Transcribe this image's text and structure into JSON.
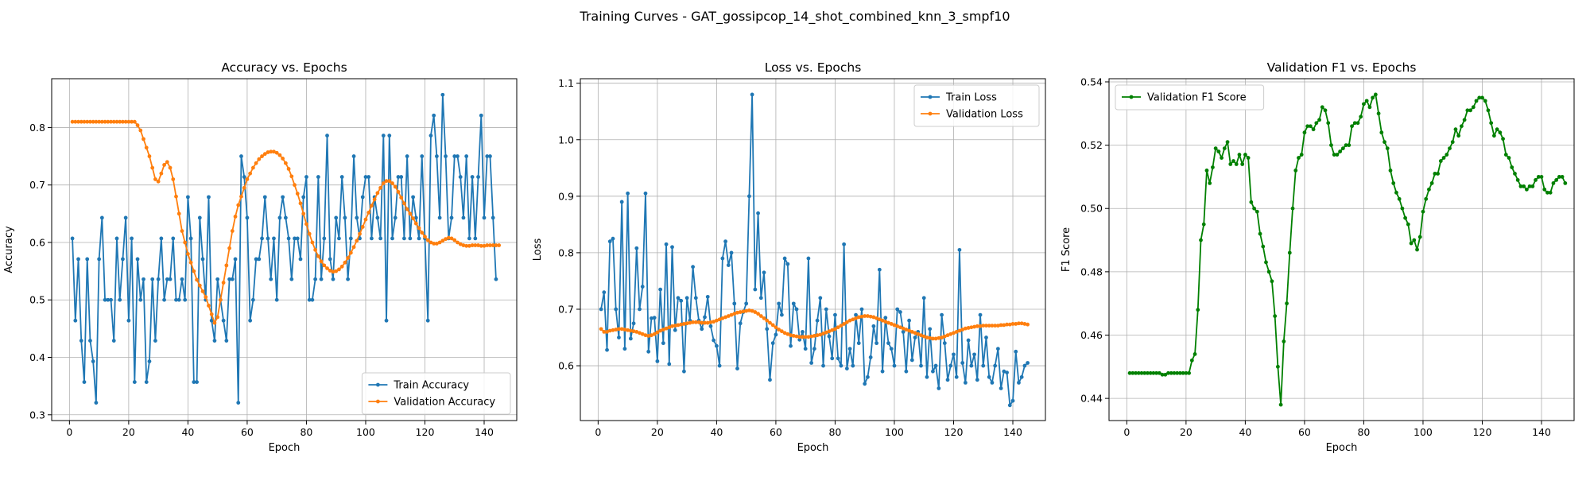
{
  "figure_title": "Training Curves - GAT_gossipcop_14_shot_combined_knn_3_smpf10",
  "chart_data": [
    {
      "type": "line",
      "title": "Accuracy vs. Epochs",
      "xlabel": "Epoch",
      "ylabel": "Accuracy",
      "xlim": [
        -6,
        151
      ],
      "ylim": [
        0.29,
        0.885
      ],
      "xticks": [
        0,
        20,
        40,
        60,
        80,
        100,
        120,
        140
      ],
      "yticks": [
        0.3,
        0.4,
        0.5,
        0.6,
        0.7,
        0.8
      ],
      "tick_format": 1,
      "grid": true,
      "legend_position": "lower right",
      "series": [
        {
          "name": "Train Accuracy",
          "color": "#1f77b4",
          "values": [
            0.607,
            0.464,
            0.571,
            0.429,
            0.357,
            0.571,
            0.429,
            0.393,
            0.321,
            0.571,
            0.643,
            0.5,
            0.5,
            0.5,
            0.429,
            0.607,
            0.5,
            0.571,
            0.643,
            0.464,
            0.607,
            0.357,
            0.571,
            0.5,
            0.536,
            0.357,
            0.393,
            0.536,
            0.429,
            0.536,
            0.607,
            0.5,
            0.536,
            0.536,
            0.607,
            0.5,
            0.5,
            0.536,
            0.5,
            0.679,
            0.607,
            0.357,
            0.357,
            0.643,
            0.571,
            0.5,
            0.679,
            0.464,
            0.429,
            0.536,
            0.5,
            0.464,
            0.429,
            0.536,
            0.536,
            0.571,
            0.321,
            0.75,
            0.714,
            0.643,
            0.464,
            0.5,
            0.571,
            0.571,
            0.607,
            0.679,
            0.607,
            0.536,
            0.607,
            0.5,
            0.643,
            0.679,
            0.643,
            0.607,
            0.536,
            0.607,
            0.607,
            0.571,
            0.679,
            0.714,
            0.5,
            0.5,
            0.536,
            0.714,
            0.536,
            0.607,
            0.786,
            0.571,
            0.536,
            0.643,
            0.607,
            0.714,
            0.643,
            0.536,
            0.607,
            0.75,
            0.643,
            0.607,
            0.679,
            0.714,
            0.714,
            0.607,
            0.679,
            0.643,
            0.607,
            0.786,
            0.464,
            0.786,
            0.607,
            0.643,
            0.714,
            0.714,
            0.607,
            0.75,
            0.607,
            0.679,
            0.643,
            0.607,
            0.75,
            0.607,
            0.464,
            0.786,
            0.821,
            0.75,
            0.643,
            0.857,
            0.75,
            0.607,
            0.643,
            0.75,
            0.75,
            0.714,
            0.643,
            0.75,
            0.607,
            0.714,
            0.607,
            0.714,
            0.821,
            0.643,
            0.75,
            0.75,
            0.643,
            0.536
          ]
        },
        {
          "name": "Validation Accuracy",
          "color": "#ff7f0e",
          "values": [
            0.81,
            0.81,
            0.81,
            0.81,
            0.81,
            0.81,
            0.81,
            0.81,
            0.81,
            0.81,
            0.81,
            0.81,
            0.81,
            0.81,
            0.81,
            0.81,
            0.81,
            0.81,
            0.81,
            0.81,
            0.81,
            0.81,
            0.804,
            0.795,
            0.78,
            0.765,
            0.75,
            0.73,
            0.71,
            0.706,
            0.72,
            0.735,
            0.74,
            0.73,
            0.71,
            0.68,
            0.65,
            0.62,
            0.6,
            0.58,
            0.565,
            0.55,
            0.535,
            0.525,
            0.515,
            0.505,
            0.49,
            0.475,
            0.46,
            0.47,
            0.5,
            0.53,
            0.56,
            0.59,
            0.62,
            0.645,
            0.665,
            0.68,
            0.695,
            0.71,
            0.72,
            0.73,
            0.738,
            0.745,
            0.75,
            0.754,
            0.757,
            0.758,
            0.758,
            0.756,
            0.752,
            0.746,
            0.738,
            0.728,
            0.715,
            0.7,
            0.685,
            0.668,
            0.65,
            0.632,
            0.615,
            0.6,
            0.587,
            0.576,
            0.567,
            0.56,
            0.555,
            0.551,
            0.549,
            0.55,
            0.553,
            0.558,
            0.565,
            0.573,
            0.582,
            0.592,
            0.603,
            0.615,
            0.627,
            0.64,
            0.652,
            0.664,
            0.675,
            0.686,
            0.695,
            0.703,
            0.707,
            0.707,
            0.703,
            0.697,
            0.688,
            0.678,
            0.668,
            0.658,
            0.65,
            0.642,
            0.633,
            0.625,
            0.617,
            0.61,
            0.604,
            0.6,
            0.598,
            0.598,
            0.6,
            0.603,
            0.606,
            0.608,
            0.607,
            0.604,
            0.6,
            0.597,
            0.595,
            0.594,
            0.594,
            0.595,
            0.595,
            0.595,
            0.594,
            0.594,
            0.595,
            0.595,
            0.595,
            0.595,
            0.595
          ]
        }
      ]
    },
    {
      "type": "line",
      "title": "Loss vs. Epochs",
      "xlabel": "Epoch",
      "ylabel": "Loss",
      "xlim": [
        -6,
        151
      ],
      "ylim": [
        0.503,
        1.108
      ],
      "xticks": [
        0,
        20,
        40,
        60,
        80,
        100,
        120,
        140
      ],
      "yticks": [
        0.6,
        0.7,
        0.8,
        0.9,
        1.0,
        1.1
      ],
      "tick_format": 1,
      "grid": true,
      "legend_position": "upper right",
      "series": [
        {
          "name": "Train Loss",
          "color": "#1f77b4",
          "values": [
            0.7,
            0.73,
            0.628,
            0.82,
            0.825,
            0.7,
            0.65,
            0.89,
            0.63,
            0.905,
            0.648,
            0.675,
            0.808,
            0.7,
            0.74,
            0.905,
            0.625,
            0.684,
            0.685,
            0.608,
            0.735,
            0.64,
            0.815,
            0.603,
            0.81,
            0.663,
            0.72,
            0.715,
            0.59,
            0.72,
            0.68,
            0.775,
            0.72,
            0.68,
            0.665,
            0.686,
            0.722,
            0.67,
            0.645,
            0.635,
            0.6,
            0.79,
            0.82,
            0.778,
            0.8,
            0.71,
            0.595,
            0.675,
            0.695,
            0.71,
            0.9,
            1.08,
            0.735,
            0.87,
            0.72,
            0.765,
            0.665,
            0.575,
            0.64,
            0.655,
            0.71,
            0.69,
            0.79,
            0.78,
            0.635,
            0.71,
            0.7,
            0.646,
            0.66,
            0.63,
            0.79,
            0.605,
            0.63,
            0.68,
            0.72,
            0.6,
            0.7,
            0.652,
            0.613,
            0.69,
            0.613,
            0.6,
            0.815,
            0.595,
            0.63,
            0.6,
            0.69,
            0.64,
            0.7,
            0.568,
            0.58,
            0.615,
            0.67,
            0.64,
            0.77,
            0.59,
            0.685,
            0.64,
            0.63,
            0.6,
            0.7,
            0.695,
            0.66,
            0.59,
            0.68,
            0.61,
            0.65,
            0.66,
            0.6,
            0.72,
            0.58,
            0.665,
            0.59,
            0.6,
            0.56,
            0.69,
            0.64,
            0.575,
            0.6,
            0.62,
            0.58,
            0.805,
            0.605,
            0.57,
            0.645,
            0.6,
            0.62,
            0.575,
            0.69,
            0.6,
            0.65,
            0.58,
            0.57,
            0.6,
            0.63,
            0.56,
            0.59,
            0.588,
            0.53,
            0.538,
            0.625,
            0.57,
            0.58,
            0.6,
            0.605
          ]
        },
        {
          "name": "Validation Loss",
          "color": "#ff7f0e",
          "values": [
            0.665,
            0.66,
            0.66,
            0.662,
            0.663,
            0.664,
            0.665,
            0.665,
            0.664,
            0.663,
            0.662,
            0.661,
            0.66,
            0.658,
            0.656,
            0.654,
            0.653,
            0.654,
            0.656,
            0.659,
            0.662,
            0.664,
            0.666,
            0.668,
            0.67,
            0.671,
            0.672,
            0.673,
            0.674,
            0.675,
            0.676,
            0.677,
            0.677,
            0.677,
            0.676,
            0.676,
            0.676,
            0.677,
            0.678,
            0.68,
            0.682,
            0.684,
            0.686,
            0.688,
            0.69,
            0.692,
            0.694,
            0.695,
            0.696,
            0.697,
            0.698,
            0.697,
            0.695,
            0.692,
            0.688,
            0.684,
            0.68,
            0.676,
            0.672,
            0.668,
            0.664,
            0.661,
            0.658,
            0.656,
            0.654,
            0.653,
            0.652,
            0.651,
            0.651,
            0.651,
            0.651,
            0.652,
            0.653,
            0.654,
            0.655,
            0.657,
            0.659,
            0.661,
            0.663,
            0.665,
            0.668,
            0.671,
            0.674,
            0.677,
            0.68,
            0.682,
            0.684,
            0.686,
            0.687,
            0.688,
            0.688,
            0.687,
            0.686,
            0.684,
            0.682,
            0.68,
            0.678,
            0.676,
            0.674,
            0.672,
            0.67,
            0.668,
            0.666,
            0.664,
            0.662,
            0.66,
            0.658,
            0.656,
            0.654,
            0.652,
            0.65,
            0.649,
            0.648,
            0.648,
            0.649,
            0.65,
            0.652,
            0.654,
            0.656,
            0.658,
            0.66,
            0.662,
            0.664,
            0.666,
            0.667,
            0.668,
            0.669,
            0.67,
            0.67,
            0.671,
            0.671,
            0.671,
            0.671,
            0.671,
            0.671,
            0.672,
            0.672,
            0.673,
            0.673,
            0.674,
            0.674,
            0.675,
            0.675,
            0.674,
            0.673
          ]
        }
      ]
    },
    {
      "type": "line",
      "title": "Validation F1 vs. Epochs",
      "xlabel": "Epoch",
      "ylabel": "F1 Score",
      "xlim": [
        -6,
        151
      ],
      "ylim": [
        0.433,
        0.541
      ],
      "xticks": [
        0,
        20,
        40,
        60,
        80,
        100,
        120,
        140
      ],
      "yticks": [
        0.44,
        0.46,
        0.48,
        0.5,
        0.52,
        0.54
      ],
      "tick_format": 2,
      "grid": true,
      "legend_position": "upper left",
      "series": [
        {
          "name": "Validation F1 Score",
          "color": "#008000",
          "values": [
            0.448,
            0.448,
            0.448,
            0.448,
            0.448,
            0.448,
            0.448,
            0.448,
            0.448,
            0.448,
            0.448,
            0.4475,
            0.4475,
            0.448,
            0.448,
            0.448,
            0.448,
            0.448,
            0.448,
            0.448,
            0.448,
            0.452,
            0.454,
            0.468,
            0.49,
            0.495,
            0.512,
            0.508,
            0.513,
            0.519,
            0.518,
            0.516,
            0.519,
            0.521,
            0.514,
            0.515,
            0.514,
            0.517,
            0.514,
            0.517,
            0.516,
            0.502,
            0.5,
            0.499,
            0.492,
            0.488,
            0.483,
            0.48,
            0.477,
            0.466,
            0.45,
            0.438,
            0.458,
            0.47,
            0.486,
            0.5,
            0.512,
            0.516,
            0.517,
            0.524,
            0.526,
            0.526,
            0.525,
            0.527,
            0.528,
            0.532,
            0.531,
            0.527,
            0.52,
            0.517,
            0.517,
            0.518,
            0.519,
            0.52,
            0.52,
            0.526,
            0.527,
            0.527,
            0.529,
            0.533,
            0.534,
            0.532,
            0.535,
            0.536,
            0.53,
            0.524,
            0.521,
            0.519,
            0.512,
            0.508,
            0.505,
            0.503,
            0.5,
            0.497,
            0.495,
            0.489,
            0.49,
            0.487,
            0.491,
            0.499,
            0.503,
            0.506,
            0.508,
            0.511,
            0.511,
            0.515,
            0.516,
            0.517,
            0.519,
            0.521,
            0.525,
            0.523,
            0.526,
            0.528,
            0.531,
            0.531,
            0.532,
            0.534,
            0.535,
            0.535,
            0.534,
            0.531,
            0.527,
            0.523,
            0.525,
            0.524,
            0.522,
            0.517,
            0.516,
            0.513,
            0.511,
            0.509,
            0.507,
            0.507,
            0.506,
            0.507,
            0.507,
            0.509,
            0.51,
            0.51,
            0.506,
            0.505,
            0.505,
            0.508,
            0.509,
            0.51,
            0.51,
            0.508
          ]
        }
      ]
    }
  ]
}
